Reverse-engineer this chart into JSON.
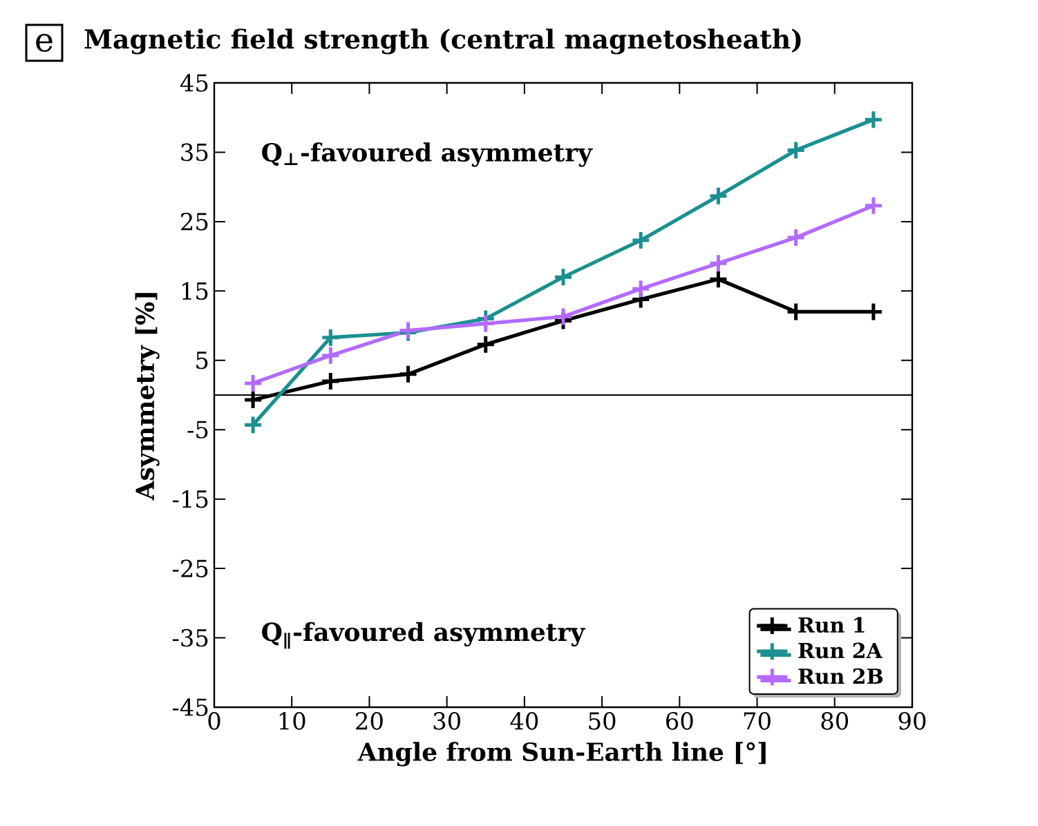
{
  "chart_data": {
    "type": "line",
    "title": "Magnetic field strength (central magnetosheath)",
    "xlabel": "Angle from Sun-Earth line [°]",
    "ylabel": "Asymmetry [%]",
    "annotations": [
      "e",
      "Q$_{⊥}$-favoured asymmetry",
      "Q$_{∥}$-favoured asymmetry"
    ],
    "x": [
      5,
      15,
      25,
      35,
      45,
      55,
      65,
      75,
      85
    ],
    "series": [
      {
        "name": "Run 1",
        "color": "#000000",
        "values": [
          -0.7,
          2,
          3,
          7.3,
          10.7,
          13.8,
          16.7,
          12,
          12
        ]
      },
      {
        "name": "Run 2A",
        "color": "#1a9090",
        "values": [
          -4.3,
          8.3,
          9,
          11,
          17,
          22.3,
          28.7,
          35.3,
          39.7
        ]
      },
      {
        "name": "Run 2B",
        "color": "#b36bff",
        "values": [
          1.7,
          5.7,
          9.3,
          10.3,
          11.3,
          15.3,
          19,
          22.7,
          27.3
        ]
      }
    ],
    "xlim": [
      0,
      90
    ],
    "ylim": [
      -45,
      45
    ],
    "xticks": [
      0,
      10,
      20,
      30,
      40,
      50,
      60,
      70,
      80,
      90
    ],
    "yticks": [
      -45,
      -35,
      -25,
      -15,
      -5,
      5,
      15,
      25,
      35,
      45
    ],
    "ref_lines": [
      {
        "axis": "y",
        "value": 0
      }
    ],
    "marker": "cross",
    "line_style": "solid",
    "legend": "bottom right",
    "grid": false
  }
}
